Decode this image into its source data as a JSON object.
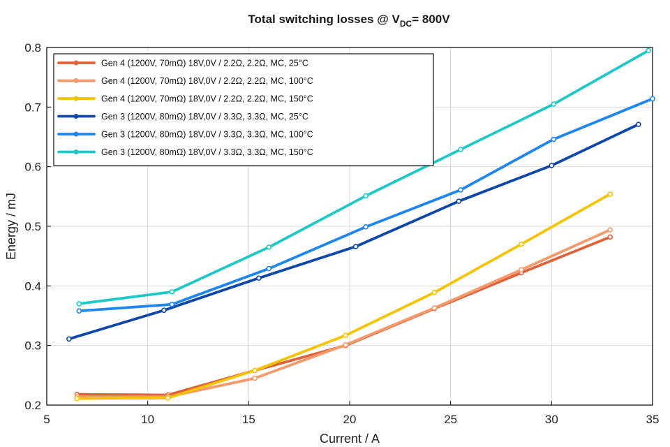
{
  "chart_data": {
    "type": "line",
    "title": {
      "prefix": "Total switching losses @ V",
      "subscript": "DC",
      "suffix": "= 800V"
    },
    "xlabel": "Current / A",
    "ylabel": "Energy / mJ",
    "xlim": [
      5,
      35
    ],
    "ylim": [
      0.2,
      0.8
    ],
    "xticks": [
      5,
      10,
      15,
      20,
      25,
      30,
      35
    ],
    "yticks": [
      0.2,
      0.3,
      0.4,
      0.5,
      0.6,
      0.7,
      0.8
    ],
    "xtick_labels": [
      "5",
      "10",
      "15",
      "20",
      "25",
      "30",
      "35"
    ],
    "ytick_labels": [
      "0.2",
      "0.3",
      "0.4",
      "0.5",
      "0.6",
      "0.7",
      "0.8"
    ],
    "grid": true,
    "legend_position": "top-left",
    "series": [
      {
        "name": "Gen 4 (1200V, 70mΩ) 18V,0V / 2.2Ω, 2.2Ω, MC, 25°C",
        "color": "#e0623a",
        "x": [
          6.5,
          11.0,
          15.3,
          19.8,
          24.2,
          28.5,
          32.9
        ],
        "y": [
          0.218,
          0.217,
          0.258,
          0.3,
          0.362,
          0.422,
          0.482
        ]
      },
      {
        "name": "Gen 4 (1200V, 70mΩ) 18V,0V / 2.2Ω, 2.2Ω, MC, 100°C",
        "color": "#f59a6c",
        "x": [
          6.5,
          11.0,
          15.3,
          19.8,
          24.2,
          28.5,
          32.9
        ],
        "y": [
          0.214,
          0.214,
          0.245,
          0.301,
          0.363,
          0.427,
          0.494
        ]
      },
      {
        "name": "Gen 4 (1200V, 70mΩ) 18V,0V / 2.2Ω, 2.2Ω, MC, 150°C",
        "color": "#f5c400",
        "x": [
          6.5,
          11.0,
          15.3,
          19.8,
          24.2,
          28.5,
          32.9
        ],
        "y": [
          0.211,
          0.212,
          0.258,
          0.317,
          0.389,
          0.47,
          0.554
        ]
      },
      {
        "name": "Gen 3 (1200V, 80mΩ) 18V,0V / 3.3Ω, 3.3Ω, MC, 25°C",
        "color": "#0d47a8",
        "x": [
          6.1,
          10.8,
          15.5,
          20.3,
          25.4,
          30.0,
          34.3
        ],
        "y": [
          0.311,
          0.359,
          0.413,
          0.466,
          0.542,
          0.602,
          0.671
        ]
      },
      {
        "name": "Gen 3 (1200V, 80mΩ) 18V,0V / 3.3Ω, 3.3Ω, MC, 100°C",
        "color": "#1f86f0",
        "x": [
          6.6,
          11.2,
          16.0,
          20.8,
          25.5,
          30.1,
          35.0
        ],
        "y": [
          0.358,
          0.369,
          0.429,
          0.499,
          0.561,
          0.646,
          0.714
        ]
      },
      {
        "name": "Gen 3 (1200V, 80mΩ) 18V,0V / 3.3Ω, 3.3Ω, MC, 150°C",
        "color": "#1ec8c8",
        "x": [
          6.6,
          11.2,
          16.0,
          20.8,
          25.5,
          30.1,
          34.8
        ],
        "y": [
          0.37,
          0.39,
          0.465,
          0.551,
          0.629,
          0.705,
          0.795
        ]
      }
    ]
  }
}
